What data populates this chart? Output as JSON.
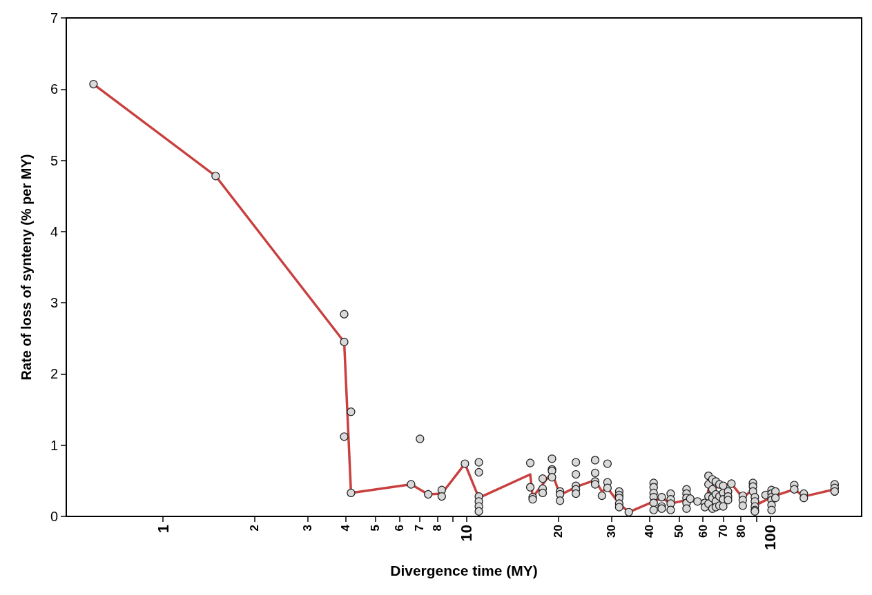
{
  "chart_data": {
    "type": "scatter",
    "xlabel": "Divergence time (MY)",
    "ylabel": "Rate of loss of synteny (% per MY)",
    "log": "x",
    "grid": false,
    "xlim": [
      0.48,
      200
    ],
    "ylim": [
      0,
      7
    ],
    "yticks": [
      0,
      1,
      2,
      3,
      4,
      5,
      6,
      7
    ],
    "xticks": [
      1,
      2,
      3,
      4,
      5,
      6,
      7,
      8,
      {
        "value": 9,
        "label": null
      },
      10,
      20,
      30,
      40,
      50,
      60,
      70,
      80,
      {
        "value": 90,
        "label": null
      },
      100
    ],
    "series": [
      {
        "marker": "circle",
        "color": "#d9d9d9",
        "x": [
          0.59,
          1.49,
          3.95,
          3.95,
          4.16,
          3.95,
          4.16,
          7.02,
          6.56,
          7.47,
          8.28,
          8.28,
          9.87,
          10.97,
          10.97,
          10.97,
          10.97,
          10.97,
          10.97,
          16.2,
          16.2,
          16.5,
          16.5,
          17.8,
          17.8,
          17.8,
          19.1,
          19.1,
          19.1,
          19.1,
          20.3,
          20.3,
          20.3,
          22.9,
          22.9,
          22.9,
          22.9,
          22.9,
          26.5,
          26.5,
          26.5,
          26.5,
          27.9,
          29.1,
          29.1,
          29.1,
          31.8,
          31.8,
          31.8,
          31.8,
          31.8,
          34.2,
          41.3,
          41.3,
          41.3,
          41.3,
          41.3,
          41.3,
          43.9,
          43.9,
          43.9,
          47,
          47,
          47,
          47,
          53,
          53,
          53,
          53,
          53,
          54.5,
          57.6,
          60.9,
          60.9,
          62.6,
          62.6,
          62.6,
          62.6,
          64.5,
          64.5,
          64.5,
          64.5,
          66.2,
          66.2,
          66.2,
          66.2,
          68,
          68,
          68,
          70,
          70,
          70,
          70,
          72.6,
          72.6,
          72.6,
          74.5,
          81.2,
          81.2,
          81.2,
          87.7,
          87.7,
          87.7,
          89,
          89,
          89,
          89,
          89,
          96.5,
          101,
          101,
          101,
          101,
          101,
          101,
          104,
          104,
          120,
          120,
          129,
          129,
          163,
          163,
          163
        ],
        "values": [
          6.07,
          4.78,
          2.84,
          2.45,
          1.47,
          1.12,
          0.33,
          1.09,
          0.45,
          0.31,
          0.37,
          0.28,
          0.74,
          0.76,
          0.62,
          0.28,
          0.21,
          0.14,
          0.07,
          0.75,
          0.41,
          0.27,
          0.24,
          0.53,
          0.39,
          0.33,
          0.81,
          0.66,
          0.64,
          0.55,
          0.35,
          0.31,
          0.22,
          0.76,
          0.59,
          0.43,
          0.38,
          0.32,
          0.79,
          0.61,
          0.49,
          0.45,
          0.29,
          0.74,
          0.48,
          0.4,
          0.35,
          0.3,
          0.26,
          0.18,
          0.13,
          0.06,
          0.47,
          0.41,
          0.33,
          0.27,
          0.19,
          0.09,
          0.27,
          0.14,
          0.11,
          0.32,
          0.24,
          0.18,
          0.09,
          0.38,
          0.32,
          0.26,
          0.19,
          0.11,
          0.25,
          0.21,
          0.19,
          0.13,
          0.57,
          0.45,
          0.28,
          0.18,
          0.52,
          0.38,
          0.26,
          0.11,
          0.49,
          0.31,
          0.21,
          0.13,
          0.45,
          0.28,
          0.15,
          0.43,
          0.33,
          0.24,
          0.14,
          0.35,
          0.28,
          0.23,
          0.46,
          0.29,
          0.23,
          0.15,
          0.47,
          0.42,
          0.35,
          0.27,
          0.21,
          0.14,
          0.09,
          0.07,
          0.3,
          0.37,
          0.32,
          0.27,
          0.23,
          0.16,
          0.09,
          0.35,
          0.26,
          0.44,
          0.38,
          0.32,
          0.26,
          0.45,
          0.4,
          0.35
        ]
      },
      {
        "type": "line",
        "marker": "none",
        "color": "#c8403f",
        "x": [
          0.59,
          1.49,
          3.95,
          4.16,
          6.56,
          7.47,
          8.28,
          9.87,
          10.97,
          16.2,
          16.5,
          19.1,
          20.3,
          23.1,
          26.5,
          27.9,
          29.1,
          31.8,
          34.2,
          41.3,
          43.9,
          47,
          53,
          61.5,
          62.6,
          74.5,
          81.2,
          87.7,
          91.8,
          101.9,
          120,
          129,
          163
        ],
        "values": [
          6.07,
          4.78,
          2.45,
          0.33,
          0.45,
          0.31,
          0.32,
          0.74,
          0.26,
          0.59,
          0.27,
          0.62,
          0.3,
          0.42,
          0.51,
          0.35,
          0.4,
          0.18,
          0.06,
          0.21,
          0.26,
          0.18,
          0.23,
          0.19,
          0.38,
          0.46,
          0.26,
          0.38,
          0.18,
          0.28,
          0.38,
          0.28,
          0.38
        ]
      }
    ]
  }
}
